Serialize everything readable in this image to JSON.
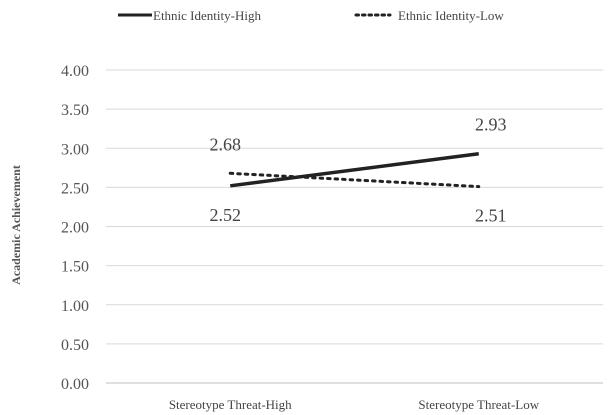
{
  "chart_data": {
    "type": "line",
    "categories": [
      "Stereotype Threat-High",
      "Stereotype Threat-Low"
    ],
    "series": [
      {
        "name": "Ethnic Identity-High",
        "values": [
          2.52,
          2.93
        ],
        "style": "solid",
        "color": "#222222"
      },
      {
        "name": "Ethnic Identity-Low",
        "values": [
          2.68,
          2.51
        ],
        "style": "dotted",
        "color": "#222222"
      }
    ],
    "ylabel": "Academic Achievement",
    "xlabel": "",
    "ylim": [
      0,
      4
    ],
    "yticks": [
      "0.00",
      "0.50",
      "1.00",
      "1.50",
      "2.00",
      "2.50",
      "3.00",
      "3.50",
      "4.00"
    ],
    "data_labels": [
      {
        "text": "2.52",
        "series": 0,
        "point": 0,
        "placement": "below"
      },
      {
        "text": "2.93",
        "series": 0,
        "point": 1,
        "placement": "above"
      },
      {
        "text": "2.68",
        "series": 1,
        "point": 0,
        "placement": "above"
      },
      {
        "text": "2.51",
        "series": 1,
        "point": 1,
        "placement": "below"
      }
    ],
    "grid": true,
    "legend": "top"
  }
}
